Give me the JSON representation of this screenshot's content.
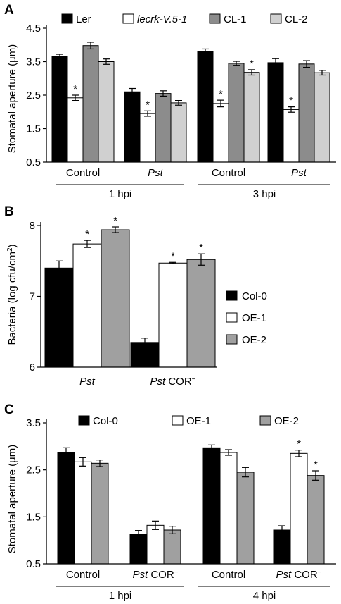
{
  "chart_data": [
    {
      "panel": "A",
      "type": "bar",
      "ylabel": "Stomatal aperture (µm)",
      "ylim": [
        0.5,
        4.5
      ],
      "yticks": [
        "0.5",
        "1.5",
        "2.5",
        "3.5",
        "4.5"
      ],
      "categories": [
        "Control",
        "Pst",
        "Control",
        "Pst"
      ],
      "category_italic": [
        false,
        true,
        false,
        true
      ],
      "groups": [
        {
          "label": "1 hpi"
        },
        {
          "label": "3 hpi"
        }
      ],
      "series": [
        {
          "name": "Ler",
          "color": "#000000",
          "values": [
            3.65,
            2.6,
            3.8,
            3.47
          ],
          "errors": [
            0.07,
            0.1,
            0.08,
            0.12
          ],
          "sig": [
            false,
            false,
            false,
            false
          ],
          "italic": false
        },
        {
          "name": "lecrk-V.5-1",
          "color": "#ffffff",
          "values": [
            2.42,
            1.95,
            2.25,
            2.07
          ],
          "errors": [
            0.08,
            0.08,
            0.1,
            0.08
          ],
          "sig": [
            true,
            true,
            true,
            true
          ],
          "italic": true
        },
        {
          "name": "CL-1",
          "color": "#8c8c8c",
          "values": [
            3.98,
            2.55,
            3.45,
            3.43
          ],
          "errors": [
            0.1,
            0.08,
            0.06,
            0.1
          ],
          "sig": [
            false,
            false,
            false,
            false
          ],
          "italic": false
        },
        {
          "name": "CL-2",
          "color": "#d0d0d0",
          "values": [
            3.5,
            2.27,
            3.18,
            3.17
          ],
          "errors": [
            0.08,
            0.07,
            0.08,
            0.07
          ],
          "sig": [
            false,
            false,
            true,
            false
          ],
          "italic": false
        }
      ],
      "sig_marker": "*",
      "legend": "top"
    },
    {
      "panel": "B",
      "type": "bar",
      "ylabel": "Bacteria (log cfu/cm²)",
      "ylim": [
        6,
        8
      ],
      "yticks": [
        "6",
        "7",
        "8"
      ],
      "categories": [
        "Pst",
        "Pst COR⁻"
      ],
      "series": [
        {
          "name": "Col-0",
          "color": "#000000",
          "values": [
            7.4,
            6.35
          ],
          "errors": [
            0.1,
            0.06
          ],
          "sig": [
            false,
            false
          ]
        },
        {
          "name": "OE-1",
          "color": "#ffffff",
          "values": [
            7.74,
            7.47
          ],
          "errors": [
            0.05,
            0.01
          ],
          "sig": [
            true,
            true
          ]
        },
        {
          "name": "OE-2",
          "color": "#a0a0a0",
          "values": [
            7.94,
            7.52
          ],
          "errors": [
            0.04,
            0.08
          ],
          "sig": [
            true,
            true
          ]
        }
      ],
      "sig_marker": "*",
      "legend": "right"
    },
    {
      "panel": "C",
      "type": "bar",
      "ylabel": "Stomatal aperture (µm)",
      "ylim": [
        0.5,
        3.5
      ],
      "yticks": [
        "0.5",
        "1.5",
        "2.5",
        "3.5"
      ],
      "categories": [
        "Control",
        "Pst COR⁻",
        "Control",
        "Pst COR⁻"
      ],
      "groups": [
        {
          "label": "1 hpi"
        },
        {
          "label": "4 hpi"
        }
      ],
      "series": [
        {
          "name": "Col-0",
          "color": "#000000",
          "values": [
            2.87,
            1.13,
            2.97,
            1.22
          ],
          "errors": [
            0.1,
            0.08,
            0.06,
            0.09
          ],
          "sig": [
            false,
            false,
            false,
            false
          ]
        },
        {
          "name": "OE-1",
          "color": "#ffffff",
          "values": [
            2.67,
            1.32,
            2.87,
            2.85
          ],
          "errors": [
            0.09,
            0.09,
            0.06,
            0.07
          ],
          "sig": [
            false,
            false,
            false,
            true
          ]
        },
        {
          "name": "OE-2",
          "color": "#a0a0a0",
          "values": [
            2.64,
            1.22,
            2.45,
            2.38
          ],
          "errors": [
            0.07,
            0.08,
            0.1,
            0.1
          ],
          "sig": [
            false,
            false,
            false,
            true
          ]
        }
      ],
      "sig_marker": "*",
      "legend": "top"
    }
  ]
}
